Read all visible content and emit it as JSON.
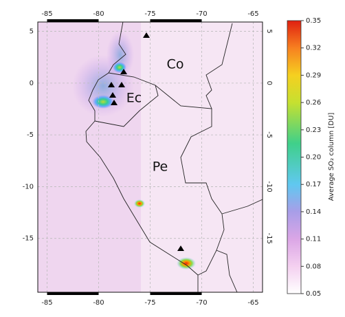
{
  "map": {
    "xlim": [
      -85.9,
      -64.1
    ],
    "ylim": [
      -20.2,
      5.9
    ],
    "xticks": [
      -85,
      -80,
      -75,
      -70,
      -65
    ],
    "yticks": [
      5,
      0,
      -5,
      -10,
      -15
    ],
    "labels": [
      "Co",
      "Ec",
      "Pe"
    ]
  },
  "colorbar": {
    "lim": [
      0.05,
      0.35
    ],
    "ticks": [
      0.05,
      0.08,
      0.11,
      0.14,
      0.17,
      {
        "value": 0.2,
        "label": "0.20"
      },
      0.23,
      0.26,
      0.29,
      0.32,
      0.35
    ],
    "label": "Average SO₂ column [DU]"
  }
}
